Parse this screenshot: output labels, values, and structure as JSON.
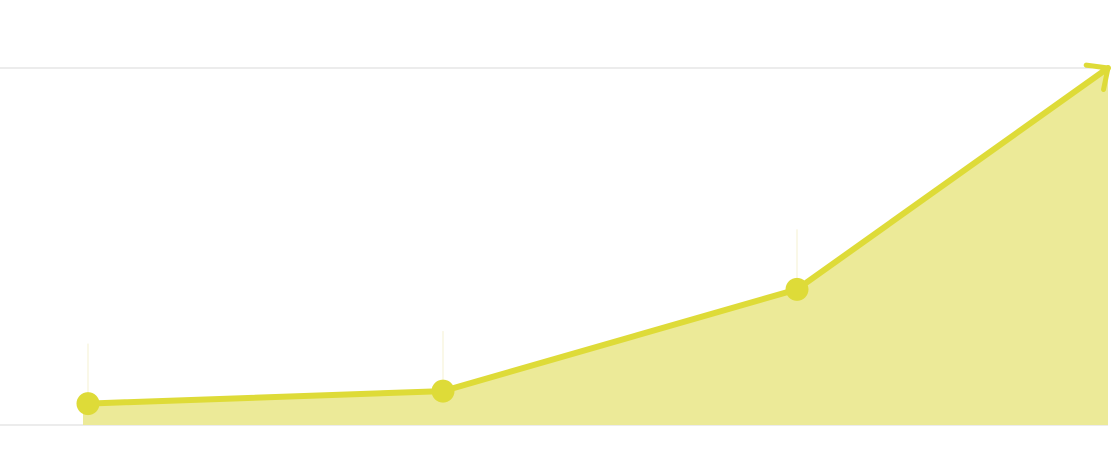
{
  "chart_data": {
    "type": "area",
    "title": "",
    "xlabel": "",
    "ylabel": "",
    "x": [
      1,
      2,
      3,
      4
    ],
    "series": [
      {
        "values": [
          6,
          9.5,
          38,
          100
        ],
        "color": "#dedb38",
        "fill_color": "#ecea98"
      }
    ],
    "ylim": [
      0,
      100
    ],
    "grid": true,
    "legend": "none",
    "end_marker": "arrow",
    "colors": {
      "line": "#dedb38",
      "fill": "#ecea98",
      "grid": "#d8d8d8"
    }
  }
}
